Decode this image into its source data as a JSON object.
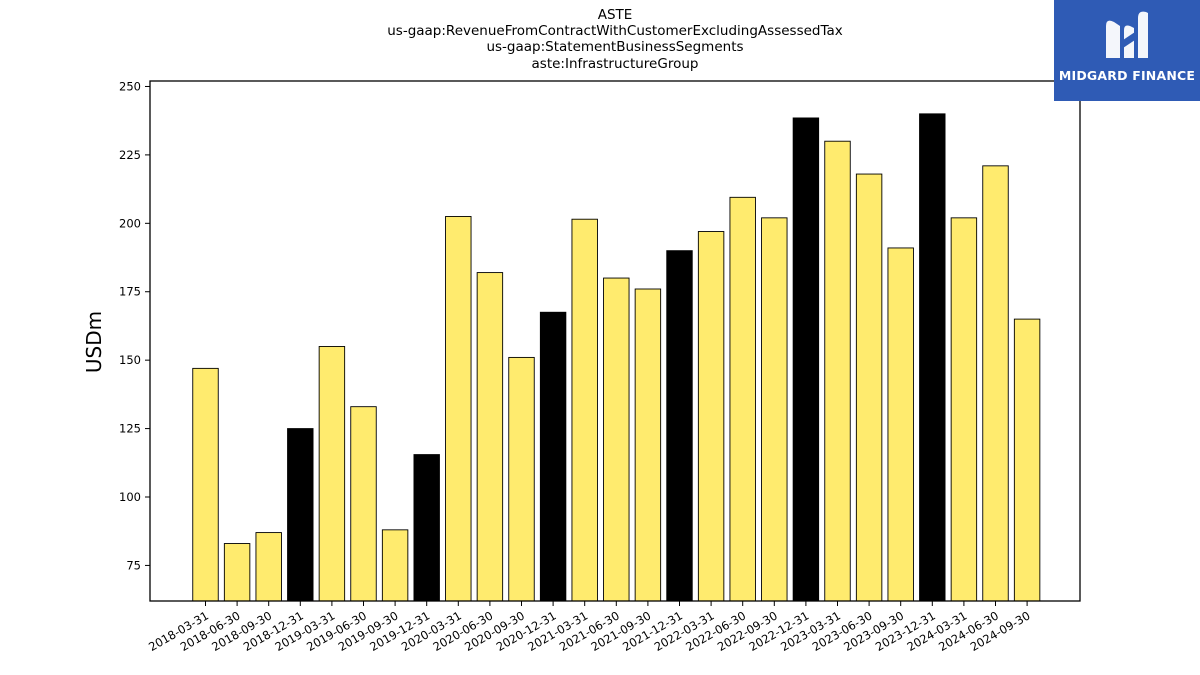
{
  "chart_data": {
    "type": "bar",
    "title_lines": [
      "ASTE",
      "us-gaap:RevenueFromContractWithCustomerExcludingAssessedTax",
      "us-gaap:StatementBusinessSegments",
      "aste:InfrastructureGroup"
    ],
    "xlabel": "",
    "ylabel": "USDm",
    "ylim": [
      62,
      252
    ],
    "yticks": [
      75,
      100,
      125,
      150,
      175,
      200,
      225,
      250
    ],
    "grid": false,
    "categories": [
      "2018-03-31",
      "2018-06-30",
      "2018-09-30",
      "2018-12-31",
      "2019-03-31",
      "2019-06-30",
      "2019-09-30",
      "2019-12-31",
      "2020-03-31",
      "2020-06-30",
      "2020-09-30",
      "2020-12-31",
      "2021-03-31",
      "2021-06-30",
      "2021-09-30",
      "2021-12-31",
      "2022-03-31",
      "2022-06-30",
      "2022-09-30",
      "2022-12-31",
      "2023-03-31",
      "2023-06-30",
      "2023-09-30",
      "2023-12-31",
      "2024-03-31",
      "2024-06-30",
      "2024-09-30"
    ],
    "values": [
      147,
      83,
      87,
      125,
      155,
      133,
      88,
      115.5,
      202.5,
      182,
      151,
      167.5,
      201.5,
      180,
      176,
      190,
      197,
      209.5,
      202,
      238.5,
      230,
      218,
      191,
      240,
      202,
      221,
      165
    ],
    "bar_colors": {
      "quarter": "#ffeb6e",
      "year_end": "#000000"
    },
    "year_end_flags": [
      false,
      false,
      false,
      true,
      false,
      false,
      false,
      true,
      false,
      false,
      false,
      true,
      false,
      false,
      false,
      true,
      false,
      false,
      false,
      true,
      false,
      false,
      false,
      true,
      false,
      false,
      false
    ]
  },
  "logo": {
    "text": "MIDGARD FINANCE",
    "icon": "midgard-logo-icon",
    "color": "#2f5bb5"
  }
}
